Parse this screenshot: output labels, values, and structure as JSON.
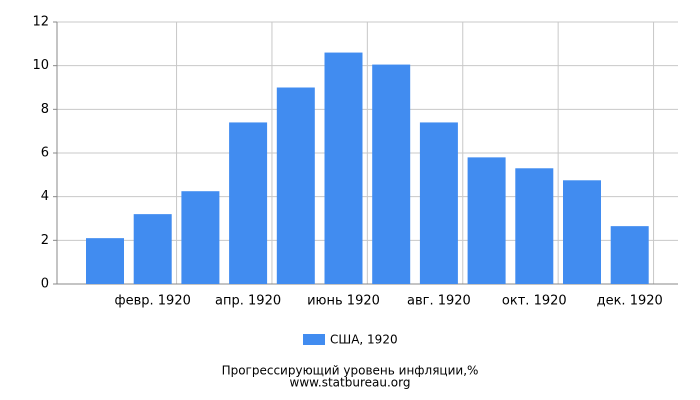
{
  "chart_data": {
    "type": "bar",
    "categories": [
      null,
      "февр. 1920",
      null,
      "апр. 1920",
      null,
      "июнь 1920",
      null,
      "авг. 1920",
      null,
      "окт. 1920",
      null,
      "дек. 1920"
    ],
    "series": [
      {
        "name": "США, 1920",
        "color": "#418cf0",
        "values": [
          2.1,
          3.2,
          4.25,
          7.4,
          9.0,
          10.6,
          10.05,
          7.4,
          5.8,
          5.3,
          4.75,
          2.65
        ]
      }
    ],
    "ylim": [
      0,
      12
    ],
    "yticks": [
      0,
      2,
      4,
      6,
      8,
      10,
      12
    ],
    "grid": true,
    "footer": [
      "Прогрессирующий уровень инфляции,%",
      "www.statbureau.org"
    ]
  }
}
